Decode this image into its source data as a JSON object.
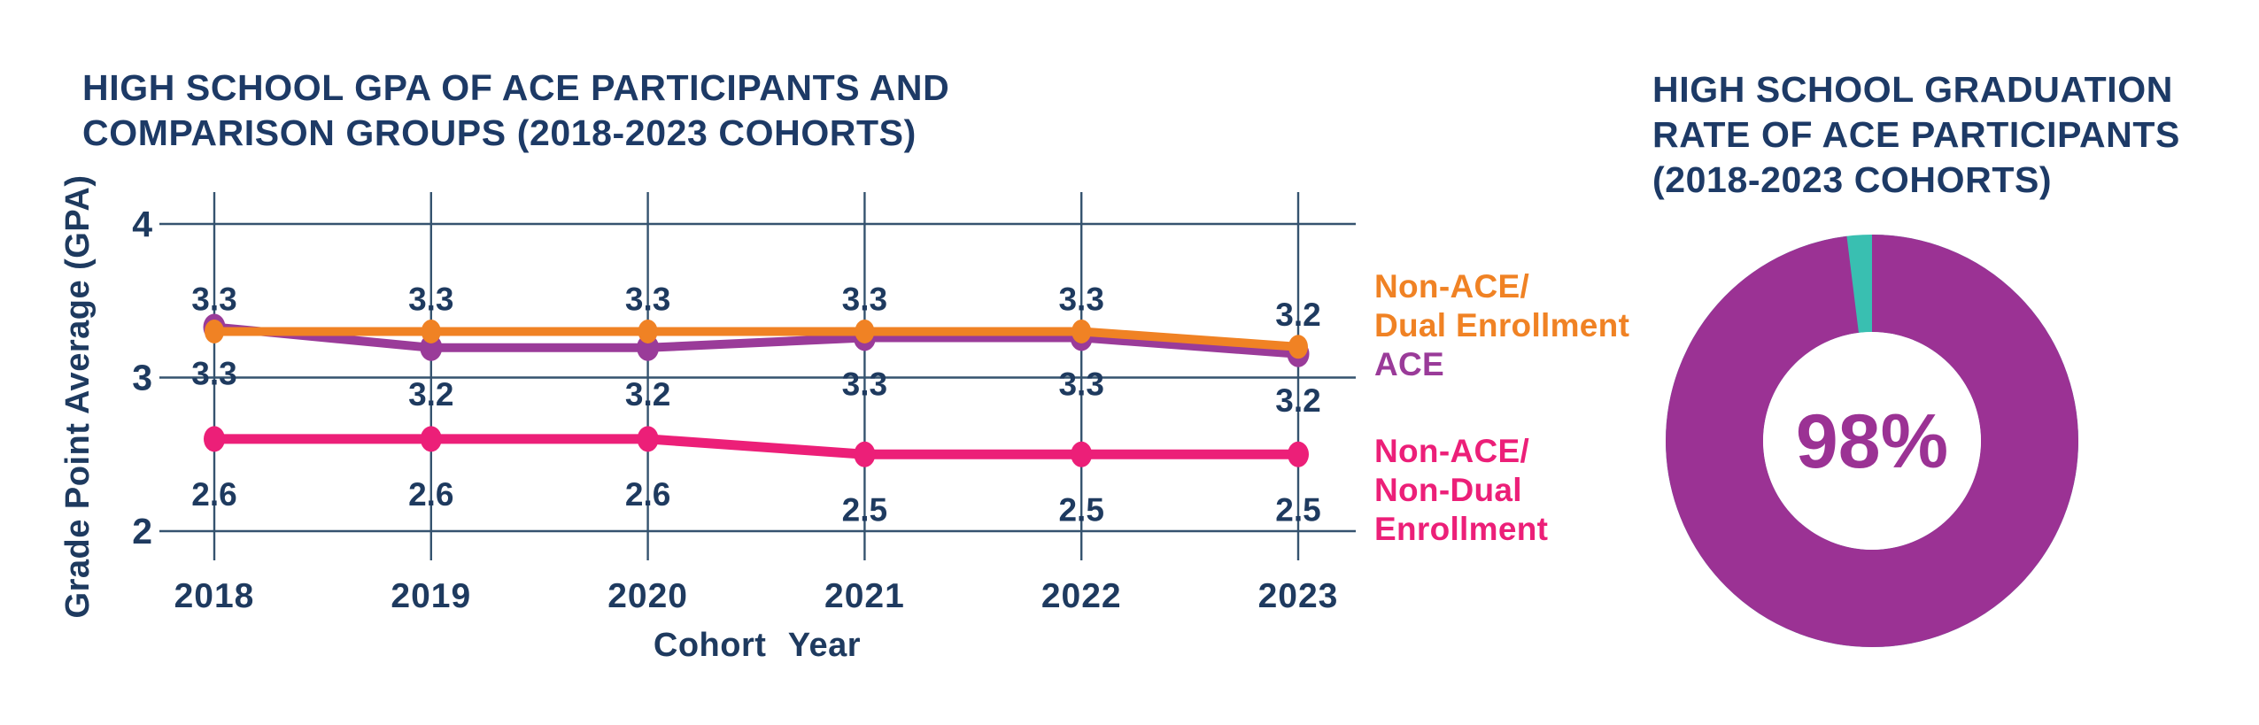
{
  "palette": {
    "title_navy": "#1D3A66",
    "axis_text_navy": "#1E3A5F",
    "gridline_navy": "#35536F",
    "background": "#FFFFFF"
  },
  "chart_data": [
    {
      "id": "gpa_line_chart",
      "type": "line",
      "title": "HIGH SCHOOL GPA OF ACE PARTICIPANTS AND COMPARISON GROUPS (2018-2023 COHORTS)",
      "title_lines": [
        "HIGH SCHOOL GPA OF ACE PARTICIPANTS AND",
        "COMPARISON GROUPS (2018-2023 COHORTS)"
      ],
      "xlabel": "Cohort  Year",
      "ylabel": "Grade Point Average (GPA)",
      "categories": [
        "2018",
        "2019",
        "2020",
        "2021",
        "2022",
        "2023"
      ],
      "yticks": [
        4,
        3,
        2
      ],
      "ylim": [
        2,
        4
      ],
      "grid": true,
      "legend_position": "right",
      "series": [
        {
          "name": "Non-ACE/Dual Enrollment",
          "name_lines": [
            "Non-ACE/",
            "Dual Enrollment"
          ],
          "color": "#F08224",
          "values": [
            3.3,
            3.3,
            3.3,
            3.3,
            3.3,
            3.2
          ],
          "label_position": "above"
        },
        {
          "name": "ACE",
          "name_lines": [
            "ACE"
          ],
          "color": "#9A3B99",
          "values": [
            3.3,
            3.2,
            3.2,
            3.3,
            3.3,
            3.2
          ],
          "label_position": "below"
        },
        {
          "name": "Non-ACE/Non-Dual Enrollment",
          "name_lines": [
            "Non-ACE/",
            "Non-Dual",
            "Enrollment"
          ],
          "color": "#EC1F78",
          "values": [
            2.6,
            2.6,
            2.6,
            2.5,
            2.5,
            2.5
          ],
          "label_position": "below"
        }
      ]
    },
    {
      "id": "graduation_donut_chart",
      "type": "pie",
      "title": "HIGH SCHOOL GRADUATION RATE OF ACE PARTICIPANTS (2018-2023 COHORTS)",
      "title_lines": [
        "HIGH SCHOOL GRADUATION",
        "RATE OF ACE PARTICIPANTS",
        "(2018-2023 COHORTS)"
      ],
      "center_label": "98%",
      "slices": [
        {
          "value": 98,
          "color": "#9B3294"
        },
        {
          "value": 2,
          "color": "#39BFB1"
        }
      ]
    }
  ]
}
